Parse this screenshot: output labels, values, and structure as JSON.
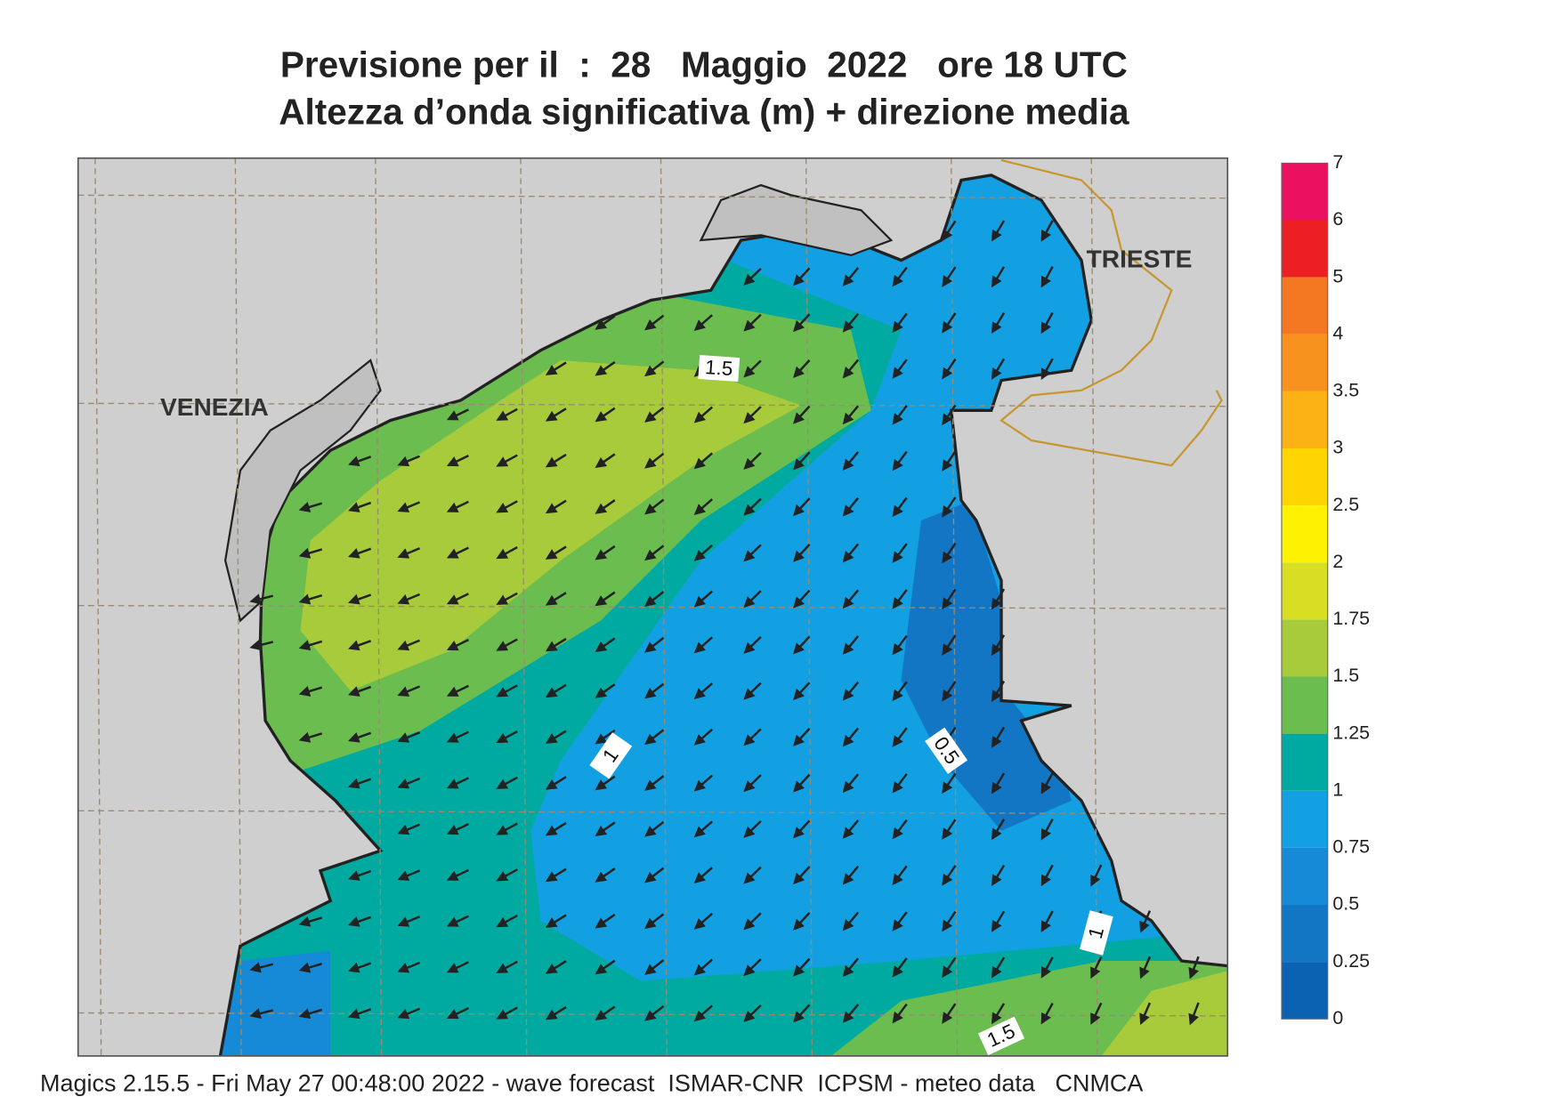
{
  "header": {
    "title": "Previsione per il  :  28   Maggio  2022   ore 18 UTC",
    "subtitle": "Altezza d’onda significativa (m) + direzione media"
  },
  "map": {
    "cities": [
      "VENEZIA",
      "TRIESTE"
    ],
    "contour_labels": [
      "1.5",
      "1",
      "0.5",
      "1",
      "1.5"
    ]
  },
  "legend": {
    "levels": [
      0,
      0.25,
      0.5,
      0.75,
      1,
      1.25,
      1.5,
      1.75,
      2,
      2.5,
      3,
      3.5,
      4,
      5,
      6,
      7
    ],
    "colors": [
      "#0b62b3",
      "#1276c4",
      "#168ad6",
      "#12a0e2",
      "#00aaa0",
      "#6cbd4f",
      "#a8cb3b",
      "#d8df22",
      "#fff200",
      "#ffd500",
      "#fcb215",
      "#f7921e",
      "#f47721",
      "#ec1f25",
      "#ec1160"
    ]
  },
  "footer": "Magics 2.15.5 - Fri May 27 00:48:00 2022 - wave forecast  ISMAR-CNR  ICPSM - meteo data   CNMCA"
}
